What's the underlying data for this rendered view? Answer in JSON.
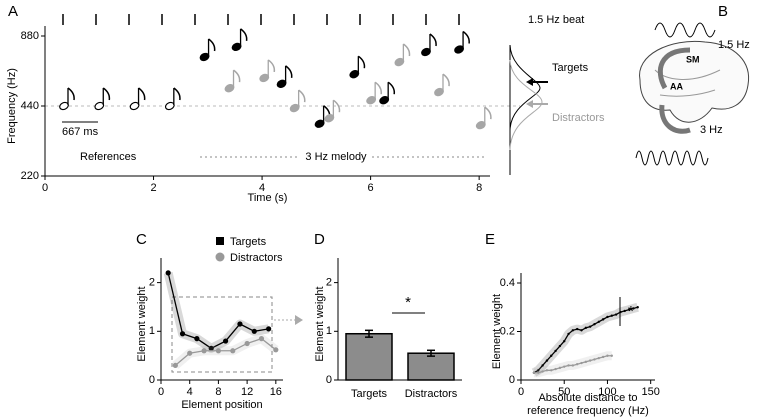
{
  "panel_labels": [
    "A",
    "B",
    "C",
    "D",
    "E"
  ],
  "brain": {
    "labels": [
      "1.5 Hz",
      "SM",
      "AA",
      "3 Hz"
    ]
  },
  "chart_data": [
    {
      "type": "scatter",
      "y_label": "Frequency (Hz)",
      "x_label": "Time (s)",
      "xlim": [
        0,
        8.2
      ],
      "xticks": [
        0,
        2,
        4,
        6,
        8
      ],
      "ylim": [
        220,
        880
      ],
      "yticks": [
        220,
        440,
        880
      ],
      "y_log": true,
      "annotations": [
        "1.5 Hz beat",
        "3 Hz melody",
        "667 ms"
      ],
      "series": [
        {
          "name": "References",
          "color": "#000000",
          "x": [
            0.35,
            1.0,
            1.65,
            2.3
          ],
          "values": [
            440,
            440,
            440,
            440
          ]
        },
        {
          "name": "Targets",
          "color": "#000000",
          "x": [
            2.94,
            3.53,
            4.36,
            5.06,
            5.7,
            6.25,
            7.02,
            7.63
          ],
          "values": [
            715,
            790,
            548,
            369,
            603,
            466,
            751,
            770
          ]
        },
        {
          "name": "Distractors",
          "color": "#a6a6a6",
          "x": [
            3.4,
            4.04,
            4.6,
            5.24,
            6.01,
            6.53,
            7.26,
            8.03
          ],
          "values": [
            525,
            581,
            431,
            390,
            466,
            680,
            505,
            364
          ]
        }
      ]
    },
    {
      "type": "line",
      "x_label": "Element position",
      "y_label": "Element weight",
      "xlim": [
        0,
        17
      ],
      "xticks": [
        0,
        4,
        8,
        12,
        16
      ],
      "ylim": [
        0,
        2.3
      ],
      "yticks": [
        0,
        1,
        2
      ],
      "series": [
        {
          "name": "Targets",
          "color": "#000000",
          "x": [
            1,
            3,
            5,
            7,
            9,
            11,
            13,
            15
          ],
          "values": [
            2.2,
            0.95,
            0.85,
            0.65,
            0.8,
            1.15,
            1.0,
            1.05
          ]
        },
        {
          "name": "Distractors",
          "color": "#999999",
          "x": [
            2,
            4,
            6,
            8,
            10,
            12,
            14,
            16
          ],
          "values": [
            0.3,
            0.55,
            0.6,
            0.6,
            0.6,
            0.75,
            0.85,
            0.62
          ]
        }
      ]
    },
    {
      "type": "bar",
      "y_label": "Element weight",
      "categories": [
        "Targets",
        "Distractors"
      ],
      "values": [
        0.95,
        0.55
      ],
      "errors": [
        0.07,
        0.06
      ],
      "color": "#8c8c8c",
      "ylim": [
        0,
        2.3
      ],
      "yticks": [
        0,
        1,
        2
      ],
      "annotation": "*"
    },
    {
      "type": "line",
      "x_label": [
        "Absolute distance to",
        "reference frequency (Hz)"
      ],
      "y_label": "Element weight",
      "xlim": [
        0,
        155
      ],
      "xticks": [
        0,
        50,
        100,
        150
      ],
      "ylim": [
        0,
        0.4
      ],
      "yticks": [
        0,
        0.2,
        0.4
      ],
      "annotation": "*",
      "series": [
        {
          "color": "#000000",
          "x": [
            15,
            20,
            25,
            30,
            35,
            40,
            45,
            50,
            55,
            60,
            65,
            70,
            75,
            80,
            85,
            90,
            95,
            100,
            105,
            110,
            115,
            120,
            125,
            130,
            135
          ],
          "values": [
            0.03,
            0.04,
            0.06,
            0.08,
            0.1,
            0.12,
            0.14,
            0.16,
            0.19,
            0.205,
            0.21,
            0.205,
            0.215,
            0.22,
            0.23,
            0.24,
            0.25,
            0.26,
            0.265,
            0.27,
            0.28,
            0.285,
            0.29,
            0.295,
            0.3
          ]
        },
        {
          "color": "#999999",
          "x": [
            15,
            20,
            25,
            30,
            35,
            40,
            45,
            50,
            55,
            60,
            65,
            70,
            75,
            80,
            85,
            90,
            95,
            100,
            105
          ],
          "values": [
            0.03,
            0.03,
            0.035,
            0.04,
            0.04,
            0.045,
            0.05,
            0.055,
            0.06,
            0.06,
            0.065,
            0.07,
            0.075,
            0.08,
            0.085,
            0.09,
            0.095,
            0.1,
            0.1
          ]
        }
      ]
    }
  ]
}
